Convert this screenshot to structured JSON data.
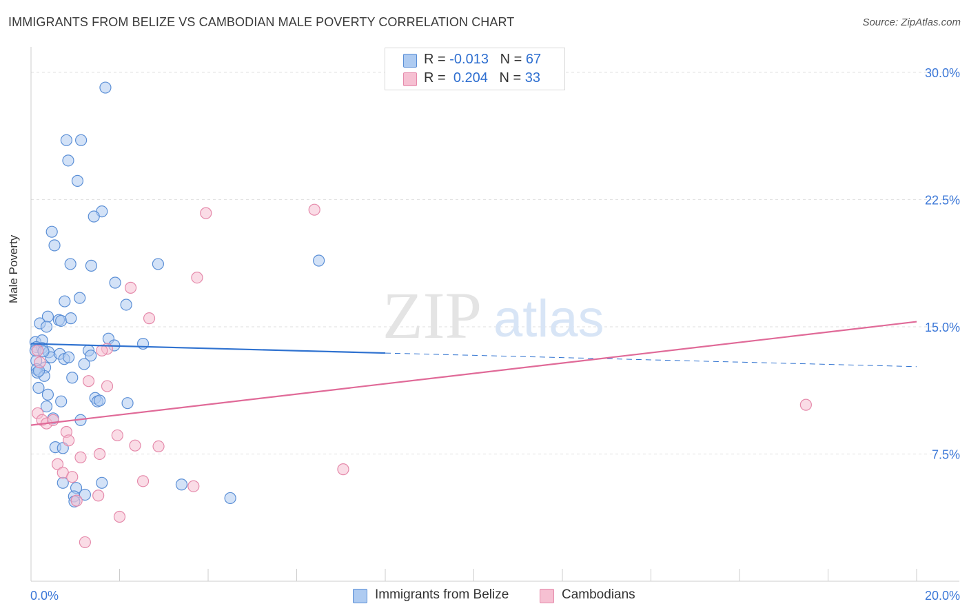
{
  "title": "IMMIGRANTS FROM BELIZE VS CAMBODIAN MALE POVERTY CORRELATION CHART",
  "source": "Source: ZipAtlas.com",
  "colors": {
    "blue_fill": "#aecbf1",
    "blue_stroke": "#5b8fd6",
    "blue_line": "#2f72d0",
    "pink_fill": "#f6c0d2",
    "pink_stroke": "#e58aab",
    "pink_line": "#e06a98",
    "tick_label": "#3c78d8",
    "grid": "#dedede"
  },
  "legend": {
    "rows": [
      {
        "r_label": "R =",
        "r_value": "-0.013",
        "n_label": "N =",
        "n_value": "67"
      },
      {
        "r_label": "R =",
        "r_value": "0.204",
        "n_label": "N =",
        "n_value": "33"
      }
    ]
  },
  "bottom_legend": [
    "Immigrants from Belize",
    "Cambodians"
  ],
  "watermark": {
    "zip": "ZIP",
    "atlas": "atlas"
  },
  "chart_data": {
    "type": "scatter",
    "title": "IMMIGRANTS FROM BELIZE VS CAMBODIAN MALE POVERTY CORRELATION CHART",
    "xlabel": "",
    "ylabel": "Male Poverty",
    "xlim": [
      0,
      20
    ],
    "ylim": [
      0,
      31.5
    ],
    "x_tick_labels": [
      {
        "value": 0,
        "label": "0.0%"
      },
      {
        "value": 20,
        "label": "20.0%"
      }
    ],
    "y_tick_labels": [
      {
        "value": 7.5,
        "label": "7.5%"
      },
      {
        "value": 15,
        "label": "15.0%"
      },
      {
        "value": 22.5,
        "label": "22.5%"
      },
      {
        "value": 30,
        "label": "30.0%"
      }
    ],
    "series": [
      {
        "name": "Immigrants from Belize",
        "trend": {
          "x0": 0,
          "y0": 14.0,
          "x1": 8,
          "y1": 13.45,
          "dash_to_x": 20,
          "dash_to_y": 12.65
        },
        "points": [
          [
            1.68,
            29.1
          ],
          [
            0.8,
            26.0
          ],
          [
            1.13,
            26.0
          ],
          [
            0.84,
            24.8
          ],
          [
            1.05,
            23.6
          ],
          [
            1.6,
            21.8
          ],
          [
            1.42,
            21.5
          ],
          [
            0.47,
            20.6
          ],
          [
            0.53,
            19.8
          ],
          [
            0.89,
            18.7
          ],
          [
            1.36,
            18.6
          ],
          [
            2.87,
            18.7
          ],
          [
            6.5,
            18.9
          ],
          [
            1.9,
            17.6
          ],
          [
            1.1,
            16.7
          ],
          [
            0.76,
            16.5
          ],
          [
            2.15,
            16.3
          ],
          [
            0.38,
            15.6
          ],
          [
            0.63,
            15.4
          ],
          [
            0.68,
            15.35
          ],
          [
            0.9,
            15.5
          ],
          [
            0.2,
            15.2
          ],
          [
            0.35,
            15.0
          ],
          [
            0.1,
            14.1
          ],
          [
            0.25,
            14.2
          ],
          [
            1.75,
            14.3
          ],
          [
            0.12,
            13.8
          ],
          [
            0.25,
            13.75
          ],
          [
            1.88,
            13.9
          ],
          [
            2.53,
            14.0
          ],
          [
            0.4,
            13.5
          ],
          [
            0.45,
            13.2
          ],
          [
            0.65,
            13.4
          ],
          [
            0.75,
            13.1
          ],
          [
            0.85,
            13.2
          ],
          [
            1.3,
            13.6
          ],
          [
            1.35,
            13.3
          ],
          [
            0.12,
            13.0
          ],
          [
            0.32,
            12.6
          ],
          [
            1.2,
            12.8
          ],
          [
            0.13,
            12.5
          ],
          [
            0.14,
            12.3
          ],
          [
            0.3,
            12.1
          ],
          [
            0.93,
            12.0
          ],
          [
            0.17,
            11.4
          ],
          [
            0.38,
            11.0
          ],
          [
            1.45,
            10.8
          ],
          [
            1.5,
            10.6
          ],
          [
            1.55,
            10.65
          ],
          [
            0.68,
            10.6
          ],
          [
            2.18,
            10.5
          ],
          [
            0.35,
            10.3
          ],
          [
            0.5,
            9.6
          ],
          [
            1.12,
            9.5
          ],
          [
            0.55,
            7.9
          ],
          [
            0.72,
            7.85
          ],
          [
            0.72,
            5.8
          ],
          [
            1.6,
            5.8
          ],
          [
            1.02,
            5.5
          ],
          [
            3.4,
            5.7
          ],
          [
            0.97,
            5.0
          ],
          [
            1.22,
            5.1
          ],
          [
            0.98,
            4.7
          ],
          [
            4.5,
            4.9
          ],
          [
            0.1,
            13.6
          ],
          [
            0.18,
            12.4
          ],
          [
            0.28,
            13.55
          ]
        ]
      },
      {
        "name": "Cambodians",
        "trend": {
          "x0": 0,
          "y0": 9.2,
          "x1": 20,
          "y1": 15.3
        },
        "points": [
          [
            6.4,
            21.9
          ],
          [
            3.95,
            21.7
          ],
          [
            3.75,
            17.9
          ],
          [
            2.25,
            17.3
          ],
          [
            2.67,
            15.5
          ],
          [
            1.72,
            13.7
          ],
          [
            1.6,
            13.6
          ],
          [
            0.15,
            13.6
          ],
          [
            1.3,
            11.8
          ],
          [
            1.72,
            11.5
          ],
          [
            17.5,
            10.4
          ],
          [
            0.15,
            9.9
          ],
          [
            0.25,
            9.5
          ],
          [
            0.35,
            9.3
          ],
          [
            0.5,
            9.5
          ],
          [
            0.8,
            8.8
          ],
          [
            0.85,
            8.3
          ],
          [
            1.95,
            8.6
          ],
          [
            2.35,
            8.0
          ],
          [
            2.88,
            7.95
          ],
          [
            1.55,
            7.5
          ],
          [
            1.12,
            7.3
          ],
          [
            0.6,
            6.9
          ],
          [
            0.72,
            6.4
          ],
          [
            0.93,
            6.15
          ],
          [
            7.05,
            6.6
          ],
          [
            2.53,
            5.9
          ],
          [
            3.67,
            5.6
          ],
          [
            1.52,
            5.05
          ],
          [
            1.03,
            4.75
          ],
          [
            2.0,
            3.8
          ],
          [
            1.22,
            2.3
          ],
          [
            0.2,
            12.9
          ]
        ]
      }
    ]
  }
}
